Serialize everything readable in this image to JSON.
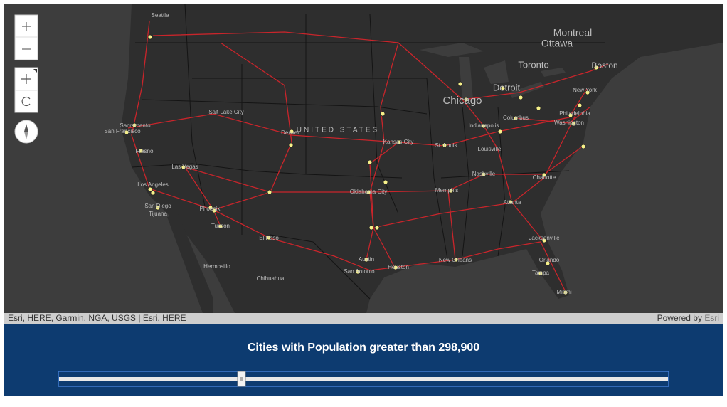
{
  "map": {
    "labels": [
      "Seattle",
      "Montreal",
      "Ottawa",
      "Toronto",
      "Chicago",
      "Detroit",
      "Boston",
      "UNITED STATES",
      "Oklahoma City",
      "Denver",
      "Kansas City",
      "Phoenix",
      "Tucson",
      "El Paso",
      "Los Angeles",
      "San Diego",
      "Tijuana",
      "Hermosillo",
      "Chihuahua",
      "San Antonio",
      "Austin",
      "Houston",
      "New Orleans",
      "Jacksonville",
      "Orlando",
      "Tampa",
      "Miami",
      "Memphis",
      "Nashville",
      "Atlanta",
      "Charlotte",
      "Columbus",
      "Indianapolis",
      "Louisville",
      "St. Louis",
      "Philadelphia",
      "Washington",
      "New York",
      "Salt Lake City",
      "Las Vegas",
      "San Francisco",
      "Fresno",
      "Sacramento"
    ]
  },
  "attribution": "Esri, HERE, Garmin, NGA, USGS | Esri, HERE",
  "powered_by": "Powered by",
  "powered_link": "Esri",
  "slider": {
    "label": "Cities with Population greater than 298,900"
  }
}
